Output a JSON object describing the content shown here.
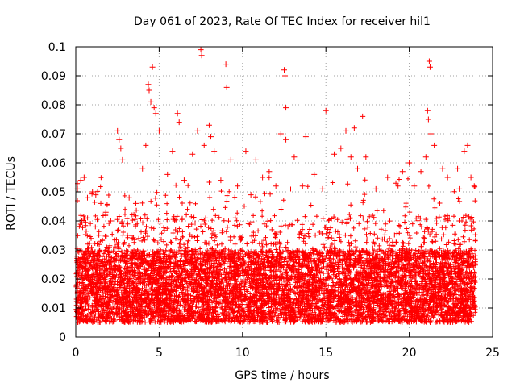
{
  "chart_data": {
    "type": "scatter",
    "title": "Day 061 of 2023, Rate Of TEC Index for receiver hil1",
    "xlabel": "GPS time / hours",
    "ylabel": "ROTI / TECUs",
    "xlim": [
      0,
      25
    ],
    "ylim": [
      0,
      0.1
    ],
    "x_ticks": [
      0,
      5,
      10,
      15,
      20,
      25
    ],
    "x_tick_labels": [
      "0",
      "5",
      "10",
      "15",
      "20",
      "25"
    ],
    "y_ticks": [
      0,
      0.01,
      0.02,
      0.03,
      0.04,
      0.05,
      0.06,
      0.07,
      0.08,
      0.09,
      0.1
    ],
    "y_tick_labels": [
      "0",
      "0.01",
      "0.02",
      "0.03",
      "0.04",
      "0.05",
      "0.06",
      "0.07",
      "0.08",
      "0.09",
      "0.1"
    ],
    "grid": true,
    "marker": "plus",
    "color": "#ff0000",
    "series": [
      {
        "name": "ROTI",
        "points": [
          [
            0.1,
            0.051
          ],
          [
            0.3,
            0.054
          ],
          [
            0.5,
            0.055
          ],
          [
            0.7,
            0.048
          ],
          [
            1.0,
            0.05
          ],
          [
            1.2,
            0.049
          ],
          [
            1.5,
            0.046
          ],
          [
            1.8,
            0.043
          ],
          [
            2.1,
            0.04
          ],
          [
            2.5,
            0.071
          ],
          [
            2.6,
            0.068
          ],
          [
            2.7,
            0.065
          ],
          [
            2.8,
            0.061
          ],
          [
            3.2,
            0.048
          ],
          [
            3.6,
            0.046
          ],
          [
            4.0,
            0.058
          ],
          [
            4.2,
            0.066
          ],
          [
            4.35,
            0.087
          ],
          [
            4.4,
            0.085
          ],
          [
            4.5,
            0.081
          ],
          [
            4.6,
            0.093
          ],
          [
            4.7,
            0.079
          ],
          [
            4.8,
            0.077
          ],
          [
            5.0,
            0.071
          ],
          [
            5.5,
            0.056
          ],
          [
            5.8,
            0.064
          ],
          [
            6.1,
            0.077
          ],
          [
            6.2,
            0.074
          ],
          [
            6.5,
            0.054
          ],
          [
            7.0,
            0.063
          ],
          [
            7.3,
            0.071
          ],
          [
            7.5,
            0.099
          ],
          [
            7.55,
            0.097
          ],
          [
            7.7,
            0.066
          ],
          [
            8.0,
            0.073
          ],
          [
            8.1,
            0.069
          ],
          [
            8.3,
            0.064
          ],
          [
            8.7,
            0.054
          ],
          [
            9.0,
            0.094
          ],
          [
            9.05,
            0.086
          ],
          [
            9.3,
            0.061
          ],
          [
            9.7,
            0.052
          ],
          [
            10.2,
            0.064
          ],
          [
            10.5,
            0.049
          ],
          [
            10.8,
            0.061
          ],
          [
            11.2,
            0.055
          ],
          [
            11.6,
            0.057
          ],
          [
            12.0,
            0.052
          ],
          [
            12.3,
            0.07
          ],
          [
            12.5,
            0.092
          ],
          [
            12.55,
            0.09
          ],
          [
            12.6,
            0.068
          ],
          [
            12.6,
            0.079
          ],
          [
            13.1,
            0.062
          ],
          [
            13.6,
            0.052
          ],
          [
            13.8,
            0.069
          ],
          [
            14.3,
            0.056
          ],
          [
            14.8,
            0.051
          ],
          [
            15.0,
            0.078
          ],
          [
            15.5,
            0.063
          ],
          [
            15.9,
            0.065
          ],
          [
            16.2,
            0.071
          ],
          [
            16.5,
            0.062
          ],
          [
            16.7,
            0.072
          ],
          [
            16.9,
            0.058
          ],
          [
            17.2,
            0.076
          ],
          [
            17.4,
            0.062
          ],
          [
            18.0,
            0.051
          ],
          [
            18.7,
            0.055
          ],
          [
            19.2,
            0.053
          ],
          [
            19.6,
            0.057
          ],
          [
            20.0,
            0.06
          ],
          [
            20.3,
            0.052
          ],
          [
            20.7,
            0.057
          ],
          [
            21.0,
            0.062
          ],
          [
            21.1,
            0.078
          ],
          [
            21.15,
            0.075
          ],
          [
            21.2,
            0.095
          ],
          [
            21.25,
            0.093
          ],
          [
            21.3,
            0.07
          ],
          [
            21.5,
            0.066
          ],
          [
            22.0,
            0.058
          ],
          [
            22.3,
            0.055
          ],
          [
            22.9,
            0.058
          ],
          [
            23.0,
            0.051
          ],
          [
            23.3,
            0.064
          ],
          [
            23.5,
            0.066
          ],
          [
            23.7,
            0.055
          ],
          [
            23.9,
            0.052
          ]
        ]
      }
    ]
  }
}
